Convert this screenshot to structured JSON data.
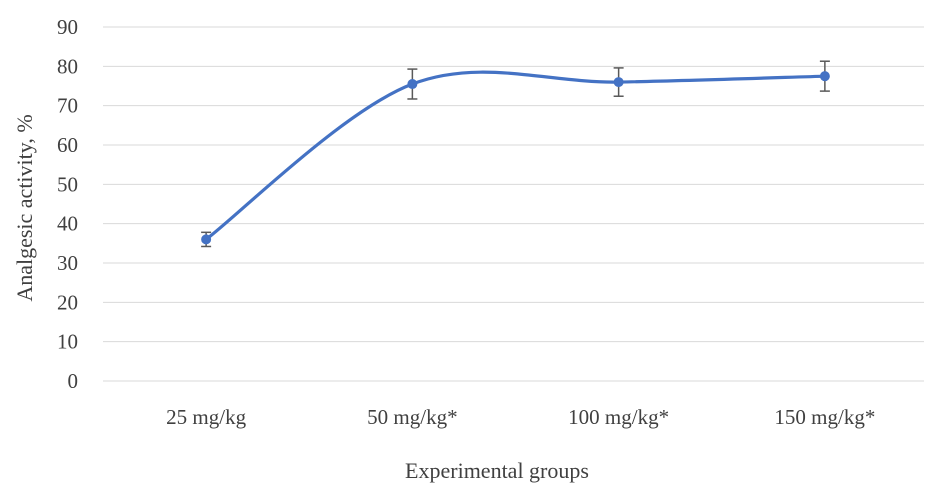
{
  "chart_data": {
    "type": "line",
    "categories": [
      "25 mg/kg",
      "50 mg/kg*",
      "100 mg/kg*",
      "150 mg/kg*"
    ],
    "series": [
      {
        "values": [
          36,
          75.5,
          76,
          77.5
        ],
        "error": [
          1.8,
          3.8,
          3.6,
          3.8
        ]
      }
    ],
    "xlabel": "Experimental groups",
    "ylabel": "Analgesic activity, %",
    "ylim": [
      0,
      90
    ],
    "yticks": [
      "0",
      "10",
      "20",
      "30",
      "40",
      "50",
      "60",
      "70",
      "80",
      "90"
    ],
    "grid": true,
    "smooth": true,
    "legend": "none",
    "colors": {
      "line": "#4472C4",
      "grid": "#D9D9D9",
      "error_bar": "#595959",
      "text": "#404040"
    }
  }
}
